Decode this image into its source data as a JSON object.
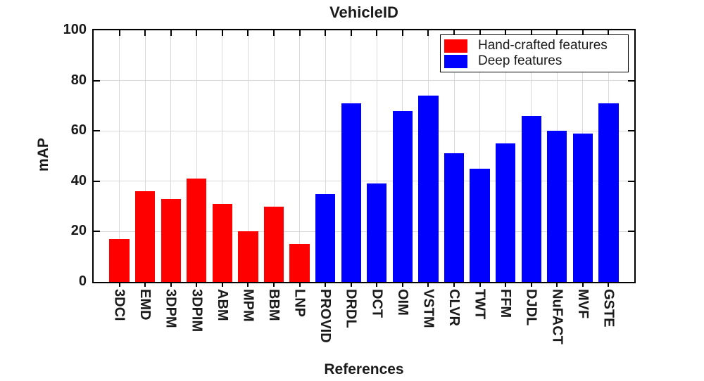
{
  "chart_data": {
    "type": "bar",
    "title": "VehicleID",
    "xlabel": "References",
    "ylabel": "mAP",
    "ylim": [
      0,
      100
    ],
    "yticks": [
      0,
      20,
      40,
      60,
      80,
      100
    ],
    "grid": true,
    "legend_position": "top-right",
    "categories": [
      "3DCI",
      "EMD",
      "3DPM",
      "3DPIM",
      "ABM",
      "MPM",
      "BBM",
      "LNP",
      "PROVID",
      "DRDL",
      "DCT",
      "OIM",
      "VSTM",
      "CLVR",
      "TWT",
      "FFM",
      "DJDL",
      "NuFACT",
      "MVF",
      "GSTE"
    ],
    "values": [
      17,
      36,
      33,
      41,
      31,
      20,
      30,
      15,
      35,
      71,
      39,
      68,
      74,
      51,
      45,
      55,
      66,
      60,
      59,
      71
    ],
    "bar_colors": [
      "#ff0000",
      "#ff0000",
      "#ff0000",
      "#ff0000",
      "#ff0000",
      "#ff0000",
      "#ff0000",
      "#ff0000",
      "#0000ff",
      "#0000ff",
      "#0000ff",
      "#0000ff",
      "#0000ff",
      "#0000ff",
      "#0000ff",
      "#0000ff",
      "#0000ff",
      "#0000ff",
      "#0000ff",
      "#0000ff"
    ],
    "legend": [
      {
        "label": "Hand-crafted features",
        "color": "#ff0000"
      },
      {
        "label": "Deep features",
        "color": "#0000ff"
      }
    ],
    "colors": {
      "grid": "#d9d9d9",
      "axis": "#000000",
      "text": "#1a1a1a",
      "background": "#ffffff"
    }
  }
}
